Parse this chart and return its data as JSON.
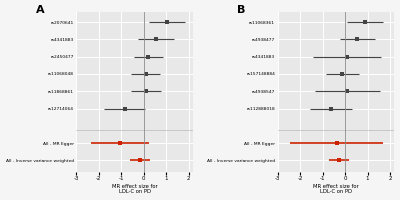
{
  "panel_A": {
    "label": "A",
    "snps": [
      "rs2070641",
      "rs4341883",
      "rs2450477",
      "rs11068048",
      "rs11868861",
      "rs12714064"
    ],
    "estimates": [
      1.05,
      0.55,
      0.2,
      0.08,
      0.12,
      -0.85
    ],
    "ci_low": [
      0.25,
      -0.25,
      -0.45,
      -0.55,
      -0.55,
      -1.75
    ],
    "ci_high": [
      1.85,
      1.35,
      0.85,
      0.71,
      0.79,
      0.05
    ],
    "summary_labels": [
      "All - MR Egger",
      "All - Inverse variance weighted"
    ],
    "summary_estimates": [
      -1.05,
      -0.18
    ],
    "summary_ci_low": [
      -2.35,
      -0.62
    ],
    "summary_ci_high": [
      0.25,
      0.26
    ],
    "xlabel": "MR effect size for\nLDL-C on PD",
    "xlim": [
      -3,
      2.2
    ],
    "xticks": [
      -3,
      -2,
      -1,
      0,
      1,
      2
    ],
    "xticklabels": [
      "-3",
      "-2",
      "-1",
      "0",
      "1",
      "2"
    ]
  },
  "panel_B": {
    "label": "B",
    "snps": [
      "rs11068361",
      "rs4938477",
      "rs4341883",
      "rs157148884",
      "rs4938547",
      "rs112888018"
    ],
    "estimates": [
      0.88,
      0.55,
      0.08,
      -0.12,
      0.1,
      -0.62
    ],
    "ci_low": [
      0.08,
      -0.25,
      -1.45,
      -0.85,
      -1.35,
      -1.55
    ],
    "ci_high": [
      1.68,
      1.35,
      1.61,
      0.61,
      1.55,
      0.31
    ],
    "summary_labels": [
      "All - MR Egger",
      "All - Inverse variance weighted"
    ],
    "summary_estimates": [
      -0.38,
      -0.28
    ],
    "summary_ci_low": [
      -2.45,
      -0.72
    ],
    "summary_ci_high": [
      1.69,
      0.16
    ],
    "xlabel": "MR effect size for\nLDL-C on PD",
    "xlim": [
      -3,
      2.2
    ],
    "xticks": [
      -3,
      -2,
      -1,
      0,
      1,
      2
    ],
    "xticklabels": [
      "-3",
      "-2",
      "-1",
      "0",
      "1",
      "2"
    ]
  },
  "snp_color": "#444444",
  "summary_color": "#cc2200",
  "bg_color": "#e8e8e8",
  "grid_color": "#ffffff",
  "dot_size": 2.5,
  "summary_dot_size": 2.5,
  "lw": 0.8,
  "summary_lw": 1.2,
  "fig_bg": "#f5f5f5"
}
